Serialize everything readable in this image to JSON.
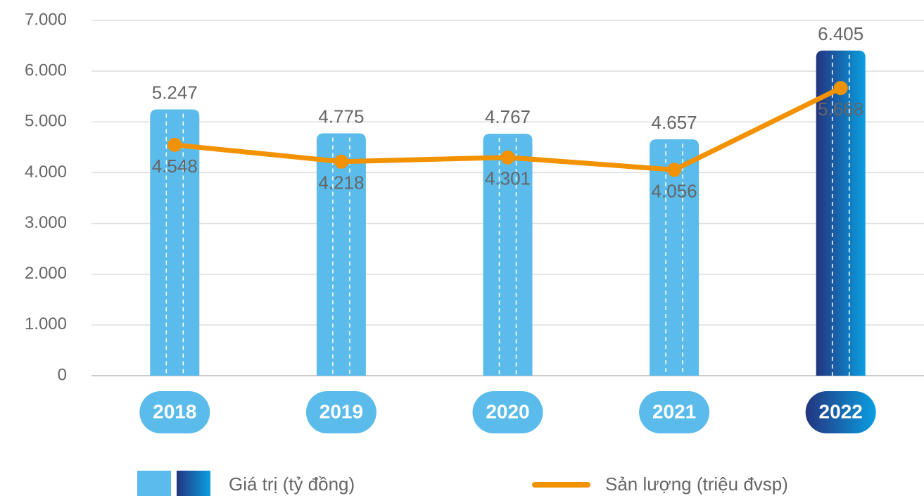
{
  "chart_data": {
    "type": "bar",
    "categories": [
      "2018",
      "2019",
      "2020",
      "2021",
      "2022"
    ],
    "series": [
      {
        "name": "Giá trị (tỷ đồng)",
        "type": "bar",
        "color": "#5bbbea",
        "values": [
          5247,
          4775,
          4767,
          4657,
          6405
        ],
        "value_labels": [
          "5.247",
          "4.775",
          "4.767",
          "4.657",
          "6.405"
        ],
        "highlight_index": 4,
        "highlight_gradient": [
          "#23347f",
          "#0a9ee0"
        ]
      },
      {
        "name": "Sản lượng (triệu đvsp)",
        "type": "line",
        "color": "#f39200",
        "values": [
          4548,
          4218,
          4301,
          4056,
          5668
        ],
        "value_labels": [
          "4.548",
          "4.218",
          "4.301",
          "4.056",
          "5.668"
        ]
      }
    ],
    "ylim": [
      0,
      7000
    ],
    "yticks": [
      {
        "value": 0,
        "label": "0"
      },
      {
        "value": 1000,
        "label": "1.000"
      },
      {
        "value": 2000,
        "label": "2.000"
      },
      {
        "value": 3000,
        "label": "3.000"
      },
      {
        "value": 4000,
        "label": "4.000"
      },
      {
        "value": 5000,
        "label": "5.000"
      },
      {
        "value": 6000,
        "label": "6.000"
      },
      {
        "value": 7000,
        "label": "7.000"
      }
    ],
    "grid": true,
    "legend": "bottom"
  }
}
